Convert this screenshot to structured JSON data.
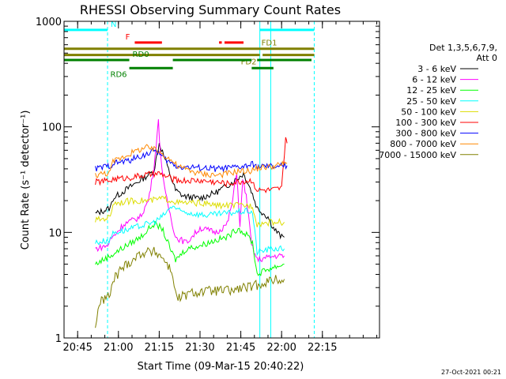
{
  "chart_data": {
    "type": "line",
    "title": "RHESSI Observing Summary Count Rates",
    "xlabel": "Start Time (09-Mar-15 20:40:22)",
    "ylabel": "Count Rate (s⁻¹ detector⁻¹)",
    "ylog": true,
    "ylim": [
      1,
      1000
    ],
    "xlim_min": [
      0,
      116
    ],
    "x_ticks": [
      {
        "min": 5,
        "label": "20:45"
      },
      {
        "min": 20,
        "label": "21:00"
      },
      {
        "min": 35,
        "label": "21:15"
      },
      {
        "min": 50,
        "label": "21:30"
      },
      {
        "min": 65,
        "label": "21:45"
      },
      {
        "min": 80,
        "label": "22:00"
      },
      {
        "min": 95,
        "label": "22:15"
      }
    ],
    "y_ticks": [
      {
        "v": 1,
        "label": "1"
      },
      {
        "v": 10,
        "label": "10"
      },
      {
        "v": 100,
        "label": "100"
      },
      {
        "v": 1000,
        "label": "1000"
      }
    ],
    "legend_header": [
      "Det 1,3,5,6,7,9,",
      "Att 0"
    ],
    "legend_placement": "right",
    "footer_date": "27-Oct-2021 00:21",
    "series": [
      {
        "name": "3 - 6 keV",
        "color": "#000000",
        "points": [
          [
            11.5,
            15
          ],
          [
            17,
            17
          ],
          [
            18,
            21
          ],
          [
            27,
            30
          ],
          [
            33,
            38
          ],
          [
            35,
            70
          ],
          [
            36.2,
            58
          ],
          [
            38,
            42
          ],
          [
            41,
            25
          ],
          [
            44,
            22
          ],
          [
            50,
            21
          ],
          [
            56,
            24
          ],
          [
            62,
            30
          ],
          [
            66,
            36
          ],
          [
            68,
            28
          ],
          [
            69.3,
            23
          ],
          [
            71,
            17
          ],
          [
            75,
            14
          ],
          [
            77,
            11
          ],
          [
            80,
            9
          ],
          [
            81,
            9
          ]
        ]
      },
      {
        "name": "6 - 12 keV",
        "color": "#ff00ff",
        "points": [
          [
            11.5,
            7
          ],
          [
            16,
            7.5
          ],
          [
            17,
            8.5
          ],
          [
            22,
            12
          ],
          [
            28,
            14
          ],
          [
            31,
            20
          ],
          [
            33,
            40
          ],
          [
            34.7,
            112
          ],
          [
            35.5,
            55
          ],
          [
            37,
            25
          ],
          [
            39,
            15
          ],
          [
            41,
            9
          ],
          [
            45,
            8
          ],
          [
            50,
            11
          ],
          [
            56,
            10
          ],
          [
            60,
            12
          ],
          [
            62,
            20
          ],
          [
            63.5,
            38
          ],
          [
            64.7,
            11
          ],
          [
            65.7,
            32
          ],
          [
            67,
            22
          ],
          [
            69,
            7.5
          ],
          [
            71,
            5.5
          ],
          [
            78,
            6
          ],
          [
            81,
            6
          ]
        ]
      },
      {
        "name": "12 - 25 keV",
        "color": "#00ff00",
        "points": [
          [
            11.5,
            5
          ],
          [
            17,
            6
          ],
          [
            23,
            7.5
          ],
          [
            28,
            9
          ],
          [
            33,
            12
          ],
          [
            36,
            11
          ],
          [
            39,
            7
          ],
          [
            41,
            5.5
          ],
          [
            45,
            7
          ],
          [
            50,
            7.5
          ],
          [
            56,
            8.5
          ],
          [
            60,
            9
          ],
          [
            64,
            11
          ],
          [
            68,
            9
          ],
          [
            69.3,
            8
          ],
          [
            71,
            4
          ],
          [
            75,
            4.5
          ],
          [
            81,
            5
          ]
        ]
      },
      {
        "name": "25 - 50 keV",
        "color": "#00ffff",
        "points": [
          [
            11.5,
            8
          ],
          [
            17,
            8.5
          ],
          [
            18,
            10
          ],
          [
            23,
            10.5
          ],
          [
            28,
            11.5
          ],
          [
            33,
            12.5
          ],
          [
            36,
            14
          ],
          [
            40,
            18
          ],
          [
            42,
            16
          ],
          [
            48,
            15
          ],
          [
            53,
            14.5
          ],
          [
            58,
            15
          ],
          [
            63,
            15.5
          ],
          [
            68,
            16
          ],
          [
            69.3,
            15.5
          ],
          [
            71,
            6.5
          ],
          [
            76,
            7
          ],
          [
            81,
            7
          ]
        ]
      },
      {
        "name": "50 - 100 keV",
        "color": "#dddd00",
        "points": [
          [
            11.5,
            13
          ],
          [
            17,
            14
          ],
          [
            18,
            19
          ],
          [
            26,
            20
          ],
          [
            32,
            20
          ],
          [
            36,
            21
          ],
          [
            40,
            20
          ],
          [
            42,
            19
          ],
          [
            50,
            19
          ],
          [
            56,
            18
          ],
          [
            62,
            18
          ],
          [
            66,
            18
          ],
          [
            69.3,
            18
          ],
          [
            71,
            12
          ],
          [
            76,
            12.5
          ],
          [
            81,
            12.5
          ]
        ]
      },
      {
        "name": "100 - 300 keV",
        "color": "#ff0000",
        "points": [
          [
            11.5,
            30
          ],
          [
            17,
            31
          ],
          [
            18,
            32
          ],
          [
            24,
            33
          ],
          [
            30,
            35
          ],
          [
            35,
            36
          ],
          [
            40,
            32
          ],
          [
            42,
            31
          ],
          [
            50,
            31
          ],
          [
            56,
            30
          ],
          [
            60,
            29
          ],
          [
            64,
            30
          ],
          [
            69.3,
            31
          ],
          [
            71,
            25
          ],
          [
            76,
            25
          ],
          [
            80,
            26
          ],
          [
            81.5,
            80
          ],
          [
            82,
            70
          ]
        ]
      },
      {
        "name": "300 - 800 keV",
        "color": "#0000ff",
        "points": [
          [
            11.5,
            40
          ],
          [
            17,
            43
          ],
          [
            18,
            45
          ],
          [
            24,
            48
          ],
          [
            30,
            55
          ],
          [
            34,
            60
          ],
          [
            36,
            52
          ],
          [
            40,
            44
          ],
          [
            42,
            42
          ],
          [
            50,
            41
          ],
          [
            56,
            40
          ],
          [
            62,
            41
          ],
          [
            66,
            42
          ],
          [
            69.3,
            44
          ],
          [
            71,
            42
          ],
          [
            76,
            42
          ],
          [
            82,
            43
          ]
        ]
      },
      {
        "name": "800 - 7000 keV",
        "color": "#ff8800",
        "points": [
          [
            11.5,
            35
          ],
          [
            17,
            37
          ],
          [
            18,
            47
          ],
          [
            25,
            57
          ],
          [
            30,
            64
          ],
          [
            34,
            60
          ],
          [
            38,
            52
          ],
          [
            42,
            42
          ],
          [
            50,
            36
          ],
          [
            56,
            35
          ],
          [
            60,
            36
          ],
          [
            64,
            38
          ],
          [
            68,
            38
          ],
          [
            72,
            41
          ],
          [
            76,
            42
          ],
          [
            82,
            45
          ]
        ]
      },
      {
        "name": "7000 - 15000 keV",
        "color": "#808000",
        "points": [
          [
            11.5,
            1.2
          ],
          [
            12.5,
            2
          ],
          [
            15,
            2.4
          ],
          [
            17,
            2.5
          ],
          [
            18,
            3.5
          ],
          [
            21,
            4.5
          ],
          [
            25,
            5.5
          ],
          [
            29,
            6.5
          ],
          [
            34,
            6.5
          ],
          [
            37,
            5.5
          ],
          [
            40,
            4
          ],
          [
            41.5,
            2.3
          ],
          [
            44,
            2.5
          ],
          [
            48,
            2.7
          ],
          [
            56,
            2.8
          ],
          [
            62,
            2.8
          ],
          [
            66,
            3
          ],
          [
            69.3,
            3
          ],
          [
            71,
            3.2
          ],
          [
            76,
            3.5
          ],
          [
            81,
            3.6
          ]
        ]
      }
    ],
    "status_bars": [
      {
        "label": "N",
        "color": "#00ffff",
        "y": 830,
        "segments": [
          [
            0,
            16
          ],
          [
            72,
            92
          ]
        ]
      },
      {
        "label": "F",
        "color": "#ff0000",
        "y": 630,
        "segments": [
          [
            26,
            36
          ],
          [
            57,
            58
          ],
          [
            59,
            66
          ]
        ]
      },
      {
        "label": "FD1",
        "color": "#808000",
        "y": 550,
        "segments": [
          [
            0,
            92
          ]
        ]
      },
      {
        "label": "FD2",
        "color": "#808000",
        "y": 480,
        "segments": [
          [
            0,
            72
          ],
          [
            73,
            92
          ]
        ]
      },
      {
        "label": "RD0",
        "color": "#008000",
        "y": 430,
        "segments": [
          [
            0,
            24
          ],
          [
            40,
            69
          ],
          [
            71,
            91
          ]
        ]
      },
      {
        "label": "RD6",
        "color": "#008000",
        "y": 360,
        "segments": [
          [
            24,
            40
          ],
          [
            69,
            77
          ]
        ]
      }
    ],
    "vertical_lines": [
      {
        "color": "#00ffff",
        "style": "solid",
        "min": 0
      },
      {
        "color": "#00ffff",
        "style": "dashed",
        "min": 16
      },
      {
        "color": "#00ffff",
        "style": "solid",
        "min": 72
      },
      {
        "color": "#00ffff",
        "style": "solid",
        "min": 76
      },
      {
        "color": "#00ffff",
        "style": "dashed",
        "min": 92
      }
    ]
  }
}
